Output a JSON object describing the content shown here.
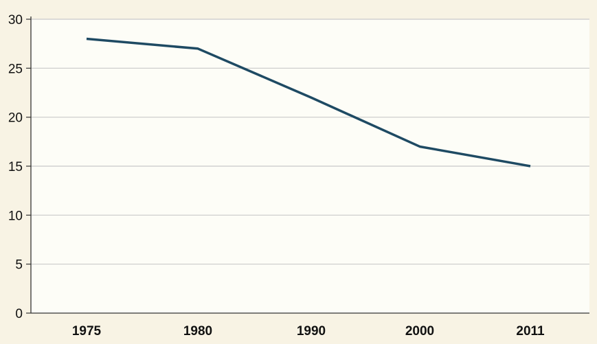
{
  "chart_data": {
    "type": "line",
    "x": [
      "1975",
      "1980",
      "1990",
      "2000",
      "2011"
    ],
    "series": [
      {
        "values": [
          28,
          27,
          22,
          17,
          15
        ]
      }
    ],
    "ylim": [
      0,
      30
    ],
    "yticks": [
      "0",
      "5",
      "10",
      "15",
      "20",
      "25",
      "30"
    ],
    "xticks": [
      "1975",
      "1980",
      "1990",
      "2000",
      "2011"
    ],
    "grid": true,
    "colors": {
      "line": "#1e4a63",
      "plot_background": "#fdfdf7",
      "page_background": "#f8f3e4",
      "grid": "#c9c9c9",
      "axis": "#333333"
    }
  }
}
